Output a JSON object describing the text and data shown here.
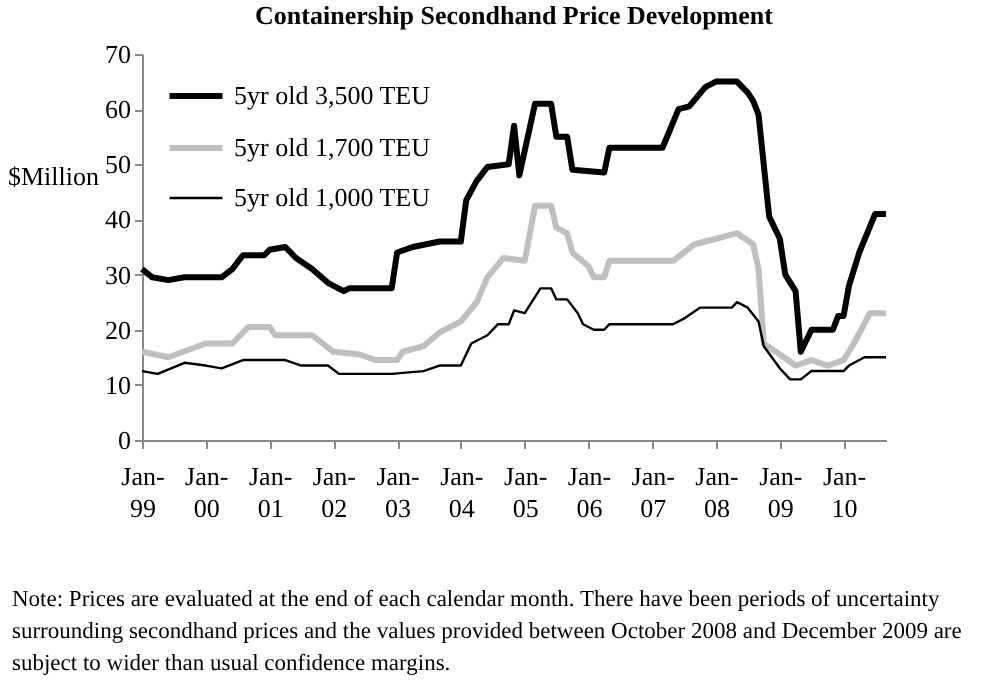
{
  "chart_data": {
    "type": "line",
    "title": "Containership Secondhand Price Development",
    "ylabel": "$Million",
    "annotations": [
      "Note: Prices are evaluated at the end of each calendar month. There have been periods of uncertainty surrounding secondhand prices and the values provided between October 2008 and December 2009 are subject to wider than usual confidence margins."
    ],
    "xlim": [
      "1999-01",
      "2010-09"
    ],
    "xticks": [
      {
        "value": "1999-01",
        "label": "Jan-99"
      },
      {
        "value": "2000-01",
        "label": "Jan-00"
      },
      {
        "value": "2001-01",
        "label": "Jan-01"
      },
      {
        "value": "2002-01",
        "label": "Jan-02"
      },
      {
        "value": "2003-01",
        "label": "Jan-03"
      },
      {
        "value": "2004-01",
        "label": "Jan-04"
      },
      {
        "value": "2005-01",
        "label": "Jan-05"
      },
      {
        "value": "2006-01",
        "label": "Jan-06"
      },
      {
        "value": "2007-01",
        "label": "Jan-07"
      },
      {
        "value": "2008-01",
        "label": "Jan-08"
      },
      {
        "value": "2009-01",
        "label": "Jan-09"
      },
      {
        "value": "2010-01",
        "label": "Jan-10"
      }
    ],
    "ylim": [
      0,
      70
    ],
    "yticks": [
      0,
      10,
      20,
      30,
      40,
      50,
      60,
      70
    ],
    "grid": false,
    "legend": "top left",
    "line_style": "solid",
    "marker": "none",
    "series": [
      {
        "name": "5yr old 3,500 TEU",
        "color": "#000000",
        "x": [
          "1999-01",
          "1999-03",
          "1999-06",
          "1999-09",
          "2000-01",
          "2000-04",
          "2000-06",
          "2000-08",
          "2000-12",
          "2001-01",
          "2001-04",
          "2001-06",
          "2001-09",
          "2001-12",
          "2002-03",
          "2002-04",
          "2002-12",
          "2003-01",
          "2003-04",
          "2003-09",
          "2004-01",
          "2004-02",
          "2004-04",
          "2004-06",
          "2004-10",
          "2004-11",
          "2004-12",
          "2005-03",
          "2005-06",
          "2005-07",
          "2005-09",
          "2005-10",
          "2006-04",
          "2006-05",
          "2007-03",
          "2007-06",
          "2007-08",
          "2007-11",
          "2008-01",
          "2008-05",
          "2008-07",
          "2008-08",
          "2008-09",
          "2008-11",
          "2009-01",
          "2009-02",
          "2009-04",
          "2009-05",
          "2009-07",
          "2009-11",
          "2009-12",
          "2010-01",
          "2010-02",
          "2010-04",
          "2010-07",
          "2010-09"
        ],
        "values": [
          31,
          29.5,
          29,
          29.5,
          29.5,
          29.5,
          31,
          33.5,
          33.5,
          34.5,
          35,
          33,
          31,
          28.5,
          27,
          27.5,
          27.5,
          34,
          35,
          36,
          36,
          43.5,
          47,
          49.5,
          50,
          57,
          48,
          61,
          61,
          55,
          55,
          49,
          48.5,
          53,
          53,
          60,
          60.5,
          64,
          65,
          65,
          63,
          61.5,
          59,
          40.5,
          36.5,
          30,
          27,
          16,
          20,
          20,
          22.5,
          22.5,
          28,
          34,
          41,
          41
        ]
      },
      {
        "name": "5yr old 1,700 TEU",
        "color": "#bfbfbf",
        "x": [
          "1999-01",
          "1999-06",
          "2000-01",
          "2000-06",
          "2000-09",
          "2001-01",
          "2001-02",
          "2001-09",
          "2002-01",
          "2002-06",
          "2002-09",
          "2003-01",
          "2003-02",
          "2003-06",
          "2003-09",
          "2004-01",
          "2004-04",
          "2004-06",
          "2004-09",
          "2005-01",
          "2005-03",
          "2005-06",
          "2005-07",
          "2005-09",
          "2005-10",
          "2006-01",
          "2006-02",
          "2006-04",
          "2006-05",
          "2007-05",
          "2007-09",
          "2008-01",
          "2008-05",
          "2008-08",
          "2008-09",
          "2008-10",
          "2009-01",
          "2009-04",
          "2009-07",
          "2009-10",
          "2010-01",
          "2010-03",
          "2010-06",
          "2010-09"
        ],
        "values": [
          16,
          15,
          17.5,
          17.5,
          20.5,
          20.5,
          19,
          19,
          16,
          15.5,
          14.5,
          14.5,
          16,
          17,
          19.5,
          21.5,
          25,
          29.5,
          33,
          32.5,
          42.5,
          42.5,
          38.5,
          37.5,
          34,
          31.5,
          29.5,
          29.5,
          32.5,
          32.5,
          35.5,
          36.5,
          37.5,
          35.5,
          31,
          17.5,
          15.5,
          13.5,
          14.5,
          13.5,
          14.5,
          17.5,
          23,
          23
        ]
      },
      {
        "name": "5yr old 1,000 TEU",
        "color": "#000000",
        "x": [
          "1999-01",
          "1999-04",
          "1999-09",
          "2000-01",
          "2000-04",
          "2000-08",
          "2001-04",
          "2001-07",
          "2001-12",
          "2002-02",
          "2002-12",
          "2003-06",
          "2003-09",
          "2004-01",
          "2004-03",
          "2004-06",
          "2004-08",
          "2004-10",
          "2004-11",
          "2005-01",
          "2005-04",
          "2005-06",
          "2005-07",
          "2005-09",
          "2005-11",
          "2005-12",
          "2006-02",
          "2006-04",
          "2006-05",
          "2007-05",
          "2007-07",
          "2007-10",
          "2008-04",
          "2008-05",
          "2008-07",
          "2008-09",
          "2008-10",
          "2009-01",
          "2009-03",
          "2009-05",
          "2009-07",
          "2009-08",
          "2010-01",
          "2010-02",
          "2010-05",
          "2010-09"
        ],
        "values": [
          12.5,
          12,
          14,
          13.5,
          13,
          14.5,
          14.5,
          13.5,
          13.5,
          12,
          12,
          12.5,
          13.5,
          13.5,
          17.5,
          19,
          21,
          21,
          23.5,
          23,
          27.5,
          27.5,
          25.5,
          25.5,
          23,
          21,
          20,
          20,
          21,
          21,
          22,
          24,
          24,
          25,
          24,
          21.5,
          17,
          13,
          11,
          11,
          12.5,
          12.5,
          12.5,
          13.5,
          15,
          15
        ]
      }
    ]
  }
}
